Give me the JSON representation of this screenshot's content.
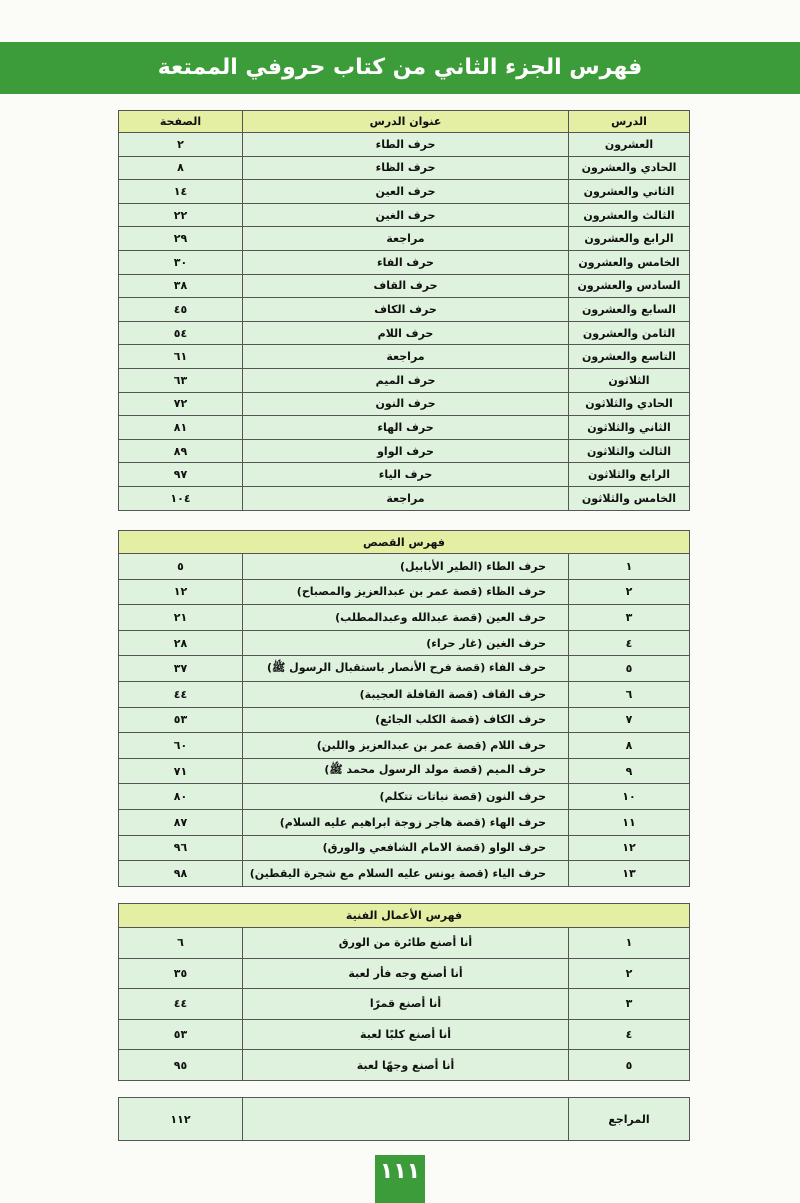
{
  "header": {
    "title": "فهرس الجزء الثاني من كتاب حروفي الممتعة"
  },
  "lessons": {
    "header": [
      "الدرس",
      "عنوان الدرس",
      "الصفحة"
    ],
    "rows": [
      [
        "العشرون",
        "حرف الطاء",
        "٢"
      ],
      [
        "الحادي والعشرون",
        "حرف الظاء",
        "٨"
      ],
      [
        "الثاني والعشرون",
        "حرف العين",
        "١٤"
      ],
      [
        "الثالث والعشرون",
        "حرف الغين",
        "٢٢"
      ],
      [
        "الرابع والعشرون",
        "مراجعة",
        "٢٩"
      ],
      [
        "الخامس والعشرون",
        "حرف الفاء",
        "٣٠"
      ],
      [
        "السادس والعشرون",
        "حرف القاف",
        "٣٨"
      ],
      [
        "السابع والعشرون",
        "حرف الكاف",
        "٤٥"
      ],
      [
        "الثامن والعشرون",
        "حرف اللام",
        "٥٤"
      ],
      [
        "التاسع والعشرون",
        "مراجعة",
        "٦١"
      ],
      [
        "الثلاثون",
        "حرف الميم",
        "٦٣"
      ],
      [
        "الحادي والثلاثون",
        "حرف النون",
        "٧٢"
      ],
      [
        "الثاني والثلاثون",
        "حرف الهاء",
        "٨١"
      ],
      [
        "الثالث والثلاثون",
        "حرف الواو",
        "٨٩"
      ],
      [
        "الرابع والثلاثون",
        "حرف الياء",
        "٩٧"
      ],
      [
        "الخامس والثلاثون",
        "مراجعة",
        "١٠٤"
      ]
    ]
  },
  "stories": {
    "title": "فهرس القصص",
    "rows": [
      [
        "١",
        "حرف الطاء (الطير الأبابيل)",
        "٥"
      ],
      [
        "٢",
        "حرف الظاء (قصة عمر بن عبدالعزيز والمصباح)",
        "١٢"
      ],
      [
        "٣",
        "حرف العين (قصة عبدالله وعبدالمطلب)",
        "٢١"
      ],
      [
        "٤",
        "حرف الغين (غار حراء)",
        "٢٨"
      ],
      [
        "٥",
        "حرف الفاء (قصة فرح الأنصار باستقبال الرسول ﷺ)",
        "٣٧"
      ],
      [
        "٦",
        "حرف القاف (قصة القافلة العجيبة)",
        "٤٤"
      ],
      [
        "٧",
        "حرف الكاف (قصة الكلب الجائع)",
        "٥٣"
      ],
      [
        "٨",
        "حرف اللام (قصة عمر بن عبدالعزيز واللبن)",
        "٦٠"
      ],
      [
        "٩",
        "حرف الميم (قصة مولد الرسول محمد ﷺ)",
        "٧١"
      ],
      [
        "١٠",
        "حرف النون (قصة نباتات تتكلم)",
        "٨٠"
      ],
      [
        "١١",
        "حرف الهاء (قصة هاجر زوجة ابراهيم عليه السلام)",
        "٨٧"
      ],
      [
        "١٢",
        "حرف الواو (قصة الامام الشافعي والورق)",
        "٩٦"
      ],
      [
        "١٣",
        "حرف الياء (قصة يونس عليه السلام مع شجرة اليقطين)",
        "٩٨"
      ]
    ]
  },
  "crafts": {
    "title": "فهرس الأعمال الفنية",
    "rows": [
      [
        "١",
        "أنا أصنع طائرة من الورق",
        "٦"
      ],
      [
        "٢",
        "أنا أصنع وجه فأر لعبة",
        "٣٥"
      ],
      [
        "٣",
        "أنا أصنع قمرًا",
        "٤٤"
      ],
      [
        "٤",
        "أنا أصنع كلبًا لعبة",
        "٥٣"
      ],
      [
        "٥",
        "أنا أصنع وجهًا لعبة",
        "٩٥"
      ]
    ]
  },
  "references": {
    "label": "المراجع",
    "page": "١١٢"
  },
  "page_number": "١١١"
}
